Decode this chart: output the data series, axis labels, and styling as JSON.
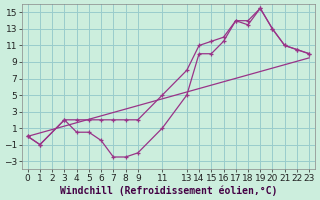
{
  "xlabel": "Windchill (Refroidissement éolien,°C)",
  "background_color": "#cceedd",
  "grid_color": "#99cccc",
  "line_color": "#993388",
  "xlim": [
    -0.5,
    23.5
  ],
  "ylim": [
    -4,
    16
  ],
  "xticks": [
    0,
    1,
    2,
    3,
    4,
    5,
    6,
    7,
    8,
    9,
    11,
    13,
    14,
    15,
    16,
    17,
    18,
    19,
    20,
    21,
    22,
    23
  ],
  "yticks": [
    -3,
    -1,
    1,
    3,
    5,
    7,
    9,
    11,
    13,
    15
  ],
  "line1_x": [
    0,
    1,
    3,
    4,
    5,
    6,
    7,
    8,
    9,
    11,
    13,
    14,
    15,
    16,
    17,
    18,
    19,
    20,
    21,
    22,
    23
  ],
  "line1_y": [
    0,
    -1,
    2,
    2,
    2,
    2,
    2,
    2,
    2,
    5,
    8,
    11,
    11.5,
    12,
    14,
    14,
    15.5,
    13,
    11,
    10.5,
    10
  ],
  "line2_x": [
    0,
    1,
    3,
    4,
    5,
    6,
    7,
    8,
    9,
    11,
    13,
    14,
    15,
    16,
    17,
    18,
    19,
    20,
    21,
    22,
    23
  ],
  "line2_y": [
    0,
    -1,
    2,
    0.5,
    0.5,
    -0.5,
    -2.5,
    -2.5,
    -2,
    1,
    5,
    10,
    10,
    11.5,
    14,
    13.5,
    15.5,
    13,
    11,
    10.5,
    10
  ],
  "line3_x": [
    0,
    23
  ],
  "line3_y": [
    0,
    9.5
  ],
  "font_size": 6.5,
  "xlabel_fontsize": 7
}
